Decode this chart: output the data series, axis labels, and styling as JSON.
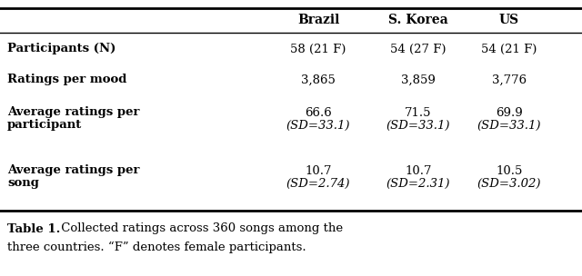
{
  "columns": [
    "Brazil",
    "S. Korea",
    "US"
  ],
  "rows": [
    {
      "label_line1": "Participants (N)",
      "label_line2": "",
      "vals_line1": [
        "58 (21 F)",
        "54 (27 F)",
        "54 (21 F)"
      ],
      "vals_line2": [
        "",
        "",
        ""
      ]
    },
    {
      "label_line1": "Ratings per mood",
      "label_line2": "",
      "vals_line1": [
        "3,865",
        "3,859",
        "3,776"
      ],
      "vals_line2": [
        "",
        "",
        ""
      ]
    },
    {
      "label_line1": "Average ratings per",
      "label_line2": "participant",
      "vals_line1": [
        "66.6",
        "71.5",
        "69.9"
      ],
      "vals_line2": [
        "(SD=33.1)",
        "(SD=33.1)",
        "(SD=33.1)"
      ]
    },
    {
      "label_line1": "Average ratings per",
      "label_line2": "song",
      "vals_line1": [
        "10.7",
        "10.7",
        "10.5"
      ],
      "vals_line2": [
        "(SD=2.74)",
        "(SD=2.31)",
        "(SD=3.02)"
      ]
    }
  ],
  "caption_bold": "Table 1.",
  "caption_normal": " Collected ratings across 360 songs among the",
  "caption_line2": "three countries. “F” denotes female participants.",
  "bg_color": "#ffffff",
  "text_color": "#000000",
  "fontsize": 9.5,
  "header_fontsize": 10
}
